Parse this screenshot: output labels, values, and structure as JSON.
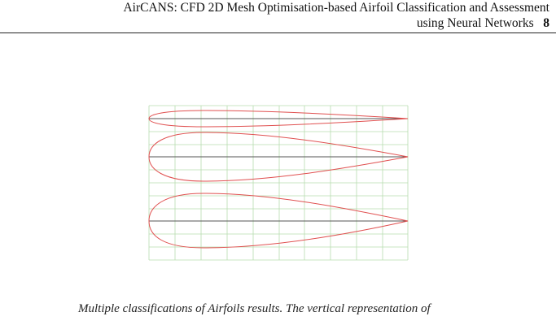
{
  "header": {
    "title_line_1": "AirCANS: CFD 2D Mesh Optimisation-based Airfoil Classification and Assessment",
    "title_line_2": "using Neural Networks",
    "page_number": "8"
  },
  "figure": {
    "caption": "Multiple classifications of Airfoils results. The vertical representation of"
  }
}
